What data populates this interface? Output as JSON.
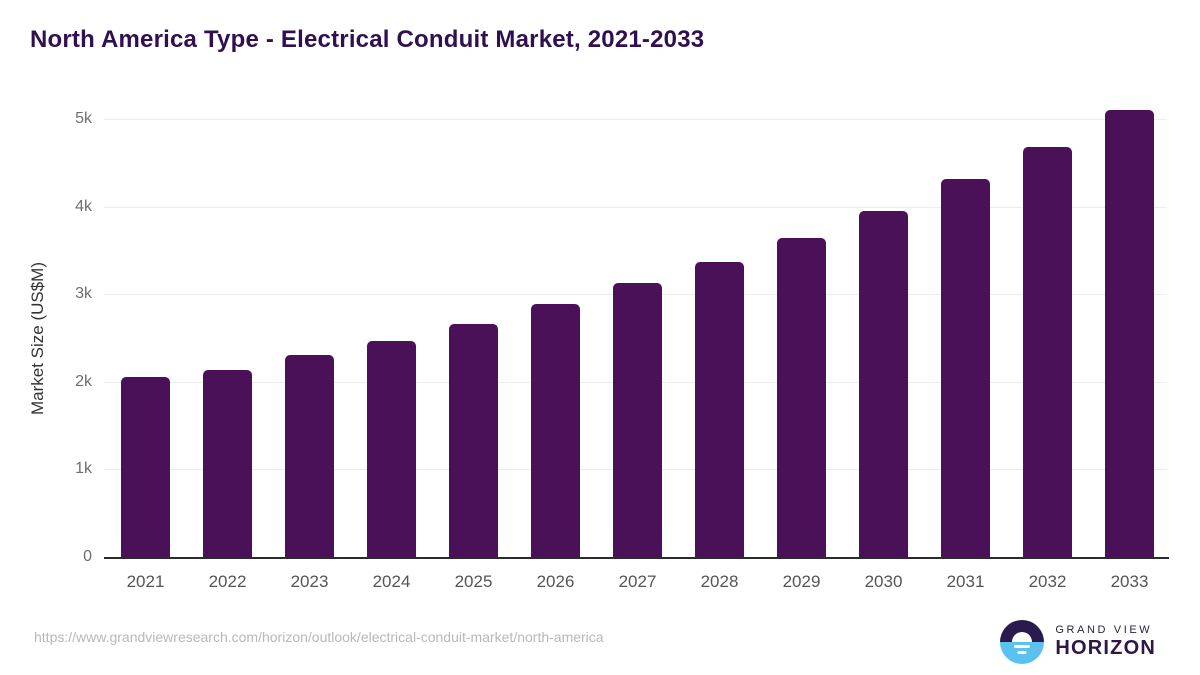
{
  "title": "North America Type - Electrical Conduit Market, 2021-2033",
  "chart_data": {
    "type": "bar",
    "title": "North America Type - Electrical Conduit Market, 2021-2033",
    "categories": [
      "2021",
      "2022",
      "2023",
      "2024",
      "2025",
      "2026",
      "2027",
      "2028",
      "2029",
      "2030",
      "2031",
      "2032",
      "2033"
    ],
    "values": [
      2055,
      2140,
      2305,
      2465,
      2665,
      2885,
      3125,
      3370,
      3640,
      3945,
      4310,
      4680,
      5100
    ],
    "xlabel": "",
    "ylabel": "Market Size (US$M)",
    "ylim": [
      0,
      5200
    ],
    "ytick_values": [
      0,
      1000,
      2000,
      3000,
      4000,
      5000
    ],
    "ytick_labels": [
      "0",
      "1k",
      "2k",
      "3k",
      "4k",
      "5k"
    ],
    "grid": true,
    "legend": "none",
    "bar_color": "#4a1158"
  },
  "colors": {
    "title": "#301050",
    "bar": "#4a1158",
    "gridline": "#ececec",
    "axis_line": "#2b2b2b",
    "tick_label": "#555555",
    "url_text": "#b8b8b8",
    "logo_dark": "#2a1b4e",
    "logo_blue": "#5bc2ef"
  },
  "footer": {
    "source_url": "https://www.grandviewresearch.com/horizon/outlook/electrical-conduit-market/north-america",
    "logo": {
      "line1": "GRAND VIEW",
      "line2": "HORIZON"
    }
  }
}
